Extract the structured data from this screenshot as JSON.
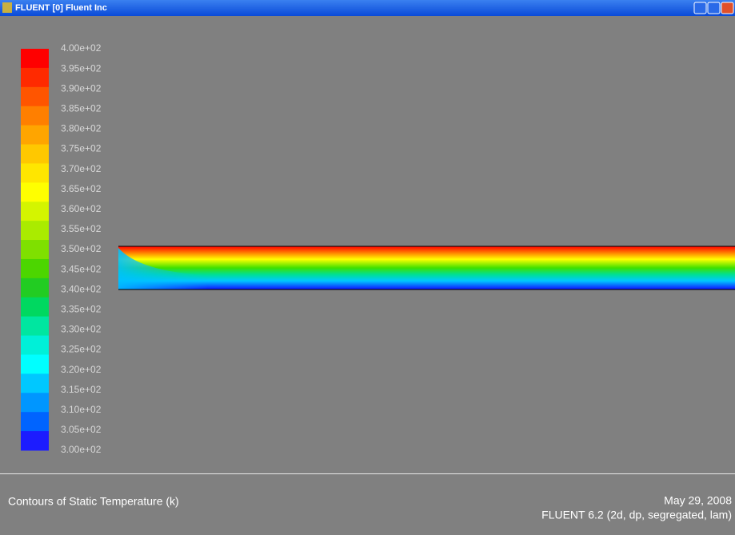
{
  "window": {
    "title": "FLUENT [0] Fluent Inc"
  },
  "colorbar": {
    "labels": [
      "4.00e+02",
      "3.95e+02",
      "3.90e+02",
      "3.85e+02",
      "3.80e+02",
      "3.75e+02",
      "3.70e+02",
      "3.65e+02",
      "3.60e+02",
      "3.55e+02",
      "3.50e+02",
      "3.45e+02",
      "3.40e+02",
      "3.35e+02",
      "3.30e+02",
      "3.25e+02",
      "3.20e+02",
      "3.15e+02",
      "3.10e+02",
      "3.05e+02",
      "3.00e+02"
    ],
    "colors": [
      "#ff0000",
      "#ff2a00",
      "#ff5500",
      "#ff7f00",
      "#ffa500",
      "#ffc800",
      "#ffe600",
      "#ffff00",
      "#d4f500",
      "#aaeb00",
      "#7fe000",
      "#4cd600",
      "#22cc22",
      "#00d860",
      "#00e6a0",
      "#00f0d8",
      "#00ffff",
      "#00c8ff",
      "#0096ff",
      "#0064ff",
      "#1c1cff"
    ]
  },
  "footer": {
    "caption": "Contours of Static Temperature (k)",
    "date": "May 29, 2008",
    "version": "FLUENT 6.2 (2d, dp, segregated, lam)"
  }
}
